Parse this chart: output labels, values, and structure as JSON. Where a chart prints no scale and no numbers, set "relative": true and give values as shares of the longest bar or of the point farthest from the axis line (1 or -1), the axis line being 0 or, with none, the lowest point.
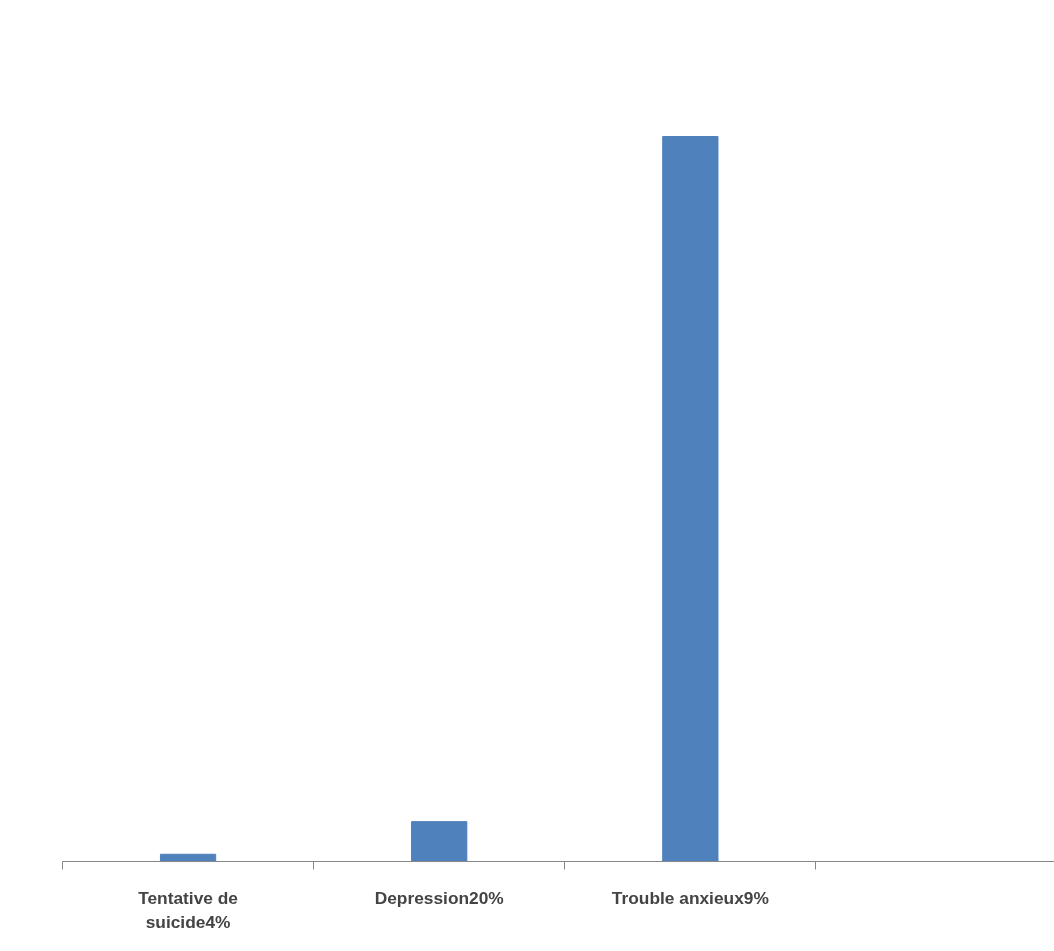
{
  "chart_data": {
    "type": "bar",
    "relative": true,
    "categories": [
      "Tentative de suicide4%",
      "Depression20%",
      "Trouble anxieux9%",
      null
    ],
    "values": [
      0.01,
      0.055,
      1,
      null
    ],
    "color": "#4f81bd",
    "grid": false
  }
}
